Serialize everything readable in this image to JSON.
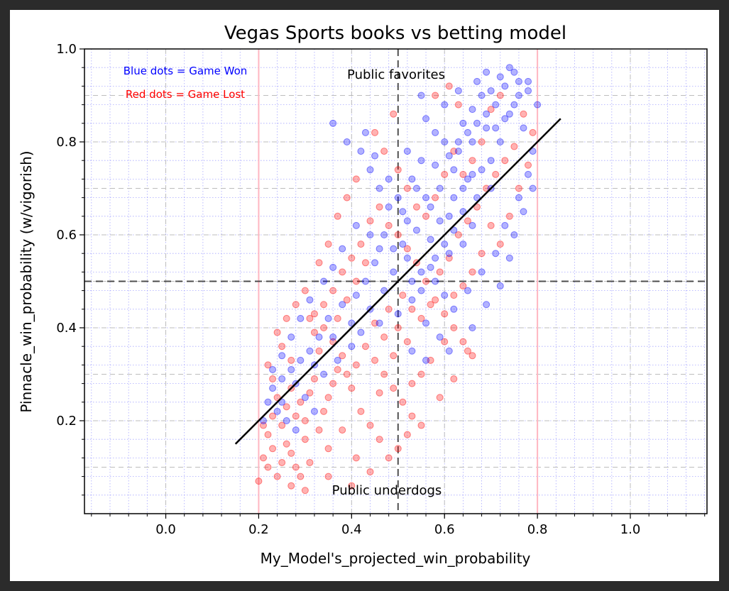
{
  "chart_data": {
    "type": "scatter",
    "title": "Vegas Sports books vs betting model",
    "xlabel": "My_Model's_projected_win_probability",
    "ylabel": "Pinnacle_win_probability (w/vigorish)",
    "xlim": [
      -0.175,
      1.165
    ],
    "ylim": [
      0.0,
      1.0
    ],
    "xticks": [
      0.0,
      0.2,
      0.4,
      0.6,
      0.8,
      1.0
    ],
    "xtick_labels": [
      "0.0",
      "0.2",
      "0.4",
      "0.6",
      "0.8",
      "1.0"
    ],
    "yticks": [
      0.2,
      0.4,
      0.6,
      0.8,
      1.0
    ],
    "ytick_labels": [
      "0.2",
      "0.4",
      "0.6",
      "0.8",
      "1.0"
    ],
    "grid": true,
    "minor_grid": true,
    "legend_notes": [
      {
        "text": "Blue dots = Game Won",
        "color": "#0000ff"
      },
      {
        "text": "Red dots = Game Lost",
        "color": "#ff0000"
      }
    ],
    "annotations": [
      {
        "text": "Public favorites",
        "x": 0.5,
        "y": 0.955
      },
      {
        "text": "Public underdogs",
        "x": 0.5,
        "y": 0.05
      }
    ],
    "reference_lines": {
      "horizontal_dashed": 0.5,
      "vertical_dashed": 0.5,
      "vertical_pink": [
        0.2,
        0.8
      ],
      "diagonal": {
        "from": [
          0.15,
          0.15
        ],
        "to": [
          0.85,
          0.85
        ]
      }
    },
    "series": [
      {
        "name": "Game Won",
        "color": "#0000ff",
        "points": [
          [
            0.74,
            0.96
          ],
          [
            0.75,
            0.95
          ],
          [
            0.72,
            0.94
          ],
          [
            0.73,
            0.92
          ],
          [
            0.7,
            0.91
          ],
          [
            0.76,
            0.9
          ],
          [
            0.78,
            0.93
          ],
          [
            0.71,
            0.88
          ],
          [
            0.74,
            0.86
          ],
          [
            0.68,
            0.9
          ],
          [
            0.66,
            0.87
          ],
          [
            0.64,
            0.84
          ],
          [
            0.69,
            0.83
          ],
          [
            0.72,
            0.8
          ],
          [
            0.63,
            0.78
          ],
          [
            0.6,
            0.8
          ],
          [
            0.58,
            0.82
          ],
          [
            0.56,
            0.85
          ],
          [
            0.62,
            0.74
          ],
          [
            0.65,
            0.72
          ],
          [
            0.59,
            0.7
          ],
          [
            0.55,
            0.76
          ],
          [
            0.53,
            0.72
          ],
          [
            0.57,
            0.66
          ],
          [
            0.61,
            0.64
          ],
          [
            0.66,
            0.62
          ],
          [
            0.52,
            0.63
          ],
          [
            0.5,
            0.68
          ],
          [
            0.48,
            0.66
          ],
          [
            0.46,
            0.7
          ],
          [
            0.44,
            0.74
          ],
          [
            0.42,
            0.78
          ],
          [
            0.39,
            0.8
          ],
          [
            0.36,
            0.84
          ],
          [
            0.47,
            0.6
          ],
          [
            0.49,
            0.57
          ],
          [
            0.52,
            0.55
          ],
          [
            0.55,
            0.52
          ],
          [
            0.58,
            0.5
          ],
          [
            0.6,
            0.47
          ],
          [
            0.45,
            0.54
          ],
          [
            0.43,
            0.5
          ],
          [
            0.41,
            0.47
          ],
          [
            0.38,
            0.45
          ],
          [
            0.35,
            0.42
          ],
          [
            0.33,
            0.38
          ],
          [
            0.31,
            0.35
          ],
          [
            0.29,
            0.33
          ],
          [
            0.27,
            0.31
          ],
          [
            0.25,
            0.29
          ],
          [
            0.23,
            0.27
          ],
          [
            0.22,
            0.24
          ],
          [
            0.24,
            0.22
          ],
          [
            0.26,
            0.2
          ],
          [
            0.3,
            0.25
          ],
          [
            0.34,
            0.3
          ],
          [
            0.37,
            0.33
          ],
          [
            0.4,
            0.36
          ],
          [
            0.42,
            0.39
          ],
          [
            0.46,
            0.41
          ],
          [
            0.5,
            0.43
          ],
          [
            0.53,
            0.46
          ],
          [
            0.56,
            0.41
          ],
          [
            0.59,
            0.38
          ],
          [
            0.62,
            0.44
          ],
          [
            0.65,
            0.48
          ],
          [
            0.68,
            0.52
          ],
          [
            0.71,
            0.56
          ],
          [
            0.73,
            0.62
          ],
          [
            0.76,
            0.68
          ],
          [
            0.78,
            0.73
          ],
          [
            0.79,
            0.78
          ],
          [
            0.77,
            0.83
          ],
          [
            0.8,
            0.88
          ],
          [
            0.7,
            0.76
          ],
          [
            0.67,
            0.68
          ],
          [
            0.64,
            0.58
          ],
          [
            0.61,
            0.56
          ],
          [
            0.57,
            0.59
          ],
          [
            0.54,
            0.61
          ],
          [
            0.51,
            0.65
          ],
          [
            0.48,
            0.72
          ],
          [
            0.45,
            0.77
          ],
          [
            0.43,
            0.82
          ],
          [
            0.55,
            0.9
          ],
          [
            0.6,
            0.88
          ],
          [
            0.63,
            0.91
          ],
          [
            0.67,
            0.93
          ],
          [
            0.69,
            0.95
          ],
          [
            0.66,
            0.8
          ],
          [
            0.58,
            0.75
          ],
          [
            0.52,
            0.78
          ],
          [
            0.47,
            0.48
          ],
          [
            0.44,
            0.44
          ],
          [
            0.4,
            0.41
          ],
          [
            0.36,
            0.38
          ],
          [
            0.32,
            0.32
          ],
          [
            0.28,
            0.28
          ],
          [
            0.25,
            0.24
          ],
          [
            0.21,
            0.2
          ],
          [
            0.53,
            0.35
          ],
          [
            0.56,
            0.33
          ],
          [
            0.61,
            0.35
          ],
          [
            0.66,
            0.4
          ],
          [
            0.69,
            0.45
          ],
          [
            0.72,
            0.49
          ],
          [
            0.74,
            0.55
          ],
          [
            0.75,
            0.6
          ],
          [
            0.77,
            0.65
          ],
          [
            0.79,
            0.7
          ],
          [
            0.62,
            0.68
          ],
          [
            0.64,
            0.65
          ],
          [
            0.59,
            0.63
          ],
          [
            0.56,
            0.68
          ],
          [
            0.54,
            0.7
          ],
          [
            0.51,
            0.58
          ],
          [
            0.49,
            0.52
          ],
          [
            0.46,
            0.57
          ],
          [
            0.44,
            0.6
          ],
          [
            0.41,
            0.62
          ],
          [
            0.38,
            0.57
          ],
          [
            0.36,
            0.53
          ],
          [
            0.34,
            0.5
          ],
          [
            0.31,
            0.46
          ],
          [
            0.29,
            0.42
          ],
          [
            0.27,
            0.38
          ],
          [
            0.25,
            0.34
          ],
          [
            0.23,
            0.31
          ],
          [
            0.28,
            0.18
          ],
          [
            0.32,
            0.22
          ],
          [
            0.76,
            0.93
          ],
          [
            0.78,
            0.91
          ],
          [
            0.75,
            0.88
          ],
          [
            0.73,
            0.85
          ],
          [
            0.71,
            0.83
          ],
          [
            0.69,
            0.86
          ],
          [
            0.67,
            0.84
          ],
          [
            0.65,
            0.82
          ],
          [
            0.63,
            0.8
          ],
          [
            0.61,
            0.77
          ],
          [
            0.7,
            0.7
          ],
          [
            0.68,
            0.74
          ],
          [
            0.66,
            0.73
          ],
          [
            0.64,
            0.7
          ],
          [
            0.62,
            0.61
          ],
          [
            0.6,
            0.58
          ],
          [
            0.58,
            0.55
          ],
          [
            0.57,
            0.53
          ],
          [
            0.55,
            0.48
          ],
          [
            0.53,
            0.5
          ]
        ]
      },
      {
        "name": "Game Lost",
        "color": "#ff0000",
        "points": [
          [
            0.21,
            0.12
          ],
          [
            0.22,
            0.1
          ],
          [
            0.23,
            0.14
          ],
          [
            0.24,
            0.08
          ],
          [
            0.25,
            0.11
          ],
          [
            0.22,
            0.17
          ],
          [
            0.21,
            0.19
          ],
          [
            0.26,
            0.15
          ],
          [
            0.27,
            0.13
          ],
          [
            0.28,
            0.1
          ],
          [
            0.23,
            0.21
          ],
          [
            0.24,
            0.25
          ],
          [
            0.25,
            0.19
          ],
          [
            0.26,
            0.23
          ],
          [
            0.27,
            0.27
          ],
          [
            0.28,
            0.21
          ],
          [
            0.29,
            0.24
          ],
          [
            0.3,
            0.2
          ],
          [
            0.31,
            0.26
          ],
          [
            0.32,
            0.29
          ],
          [
            0.3,
            0.16
          ],
          [
            0.33,
            0.18
          ],
          [
            0.34,
            0.22
          ],
          [
            0.35,
            0.25
          ],
          [
            0.36,
            0.28
          ],
          [
            0.37,
            0.31
          ],
          [
            0.38,
            0.34
          ],
          [
            0.39,
            0.3
          ],
          [
            0.4,
            0.27
          ],
          [
            0.41,
            0.32
          ],
          [
            0.33,
            0.35
          ],
          [
            0.32,
            0.39
          ],
          [
            0.31,
            0.42
          ],
          [
            0.34,
            0.45
          ],
          [
            0.36,
            0.48
          ],
          [
            0.38,
            0.52
          ],
          [
            0.4,
            0.55
          ],
          [
            0.42,
            0.58
          ],
          [
            0.44,
            0.63
          ],
          [
            0.46,
            0.66
          ],
          [
            0.48,
            0.62
          ],
          [
            0.5,
            0.6
          ],
          [
            0.52,
            0.57
          ],
          [
            0.54,
            0.54
          ],
          [
            0.56,
            0.5
          ],
          [
            0.58,
            0.46
          ],
          [
            0.6,
            0.43
          ],
          [
            0.62,
            0.4
          ],
          [
            0.64,
            0.37
          ],
          [
            0.66,
            0.34
          ],
          [
            0.43,
            0.36
          ],
          [
            0.45,
            0.33
          ],
          [
            0.47,
            0.3
          ],
          [
            0.49,
            0.27
          ],
          [
            0.51,
            0.24
          ],
          [
            0.53,
            0.21
          ],
          [
            0.55,
            0.19
          ],
          [
            0.42,
            0.22
          ],
          [
            0.44,
            0.19
          ],
          [
            0.46,
            0.16
          ],
          [
            0.48,
            0.12
          ],
          [
            0.5,
            0.14
          ],
          [
            0.52,
            0.17
          ],
          [
            0.29,
            0.08
          ],
          [
            0.31,
            0.11
          ],
          [
            0.35,
            0.14
          ],
          [
            0.38,
            0.18
          ],
          [
            0.41,
            0.12
          ],
          [
            0.44,
            0.09
          ],
          [
            0.27,
            0.06
          ],
          [
            0.48,
            0.44
          ],
          [
            0.5,
            0.4
          ],
          [
            0.52,
            0.37
          ],
          [
            0.55,
            0.42
          ],
          [
            0.57,
            0.45
          ],
          [
            0.59,
            0.52
          ],
          [
            0.61,
            0.55
          ],
          [
            0.63,
            0.6
          ],
          [
            0.65,
            0.63
          ],
          [
            0.67,
            0.66
          ],
          [
            0.69,
            0.7
          ],
          [
            0.71,
            0.73
          ],
          [
            0.73,
            0.76
          ],
          [
            0.75,
            0.79
          ],
          [
            0.62,
            0.78
          ],
          [
            0.6,
            0.73
          ],
          [
            0.58,
            0.68
          ],
          [
            0.56,
            0.64
          ],
          [
            0.54,
            0.66
          ],
          [
            0.52,
            0.7
          ],
          [
            0.5,
            0.74
          ],
          [
            0.47,
            0.78
          ],
          [
            0.45,
            0.82
          ],
          [
            0.49,
            0.86
          ],
          [
            0.63,
            0.88
          ],
          [
            0.61,
            0.92
          ],
          [
            0.58,
            0.9
          ],
          [
            0.7,
            0.62
          ],
          [
            0.72,
            0.58
          ],
          [
            0.68,
            0.56
          ],
          [
            0.66,
            0.52
          ],
          [
            0.64,
            0.49
          ],
          [
            0.62,
            0.47
          ],
          [
            0.6,
            0.37
          ],
          [
            0.57,
            0.33
          ],
          [
            0.55,
            0.3
          ],
          [
            0.53,
            0.28
          ],
          [
            0.59,
            0.25
          ],
          [
            0.62,
            0.29
          ],
          [
            0.65,
            0.35
          ],
          [
            0.37,
            0.42
          ],
          [
            0.39,
            0.46
          ],
          [
            0.41,
            0.5
          ],
          [
            0.43,
            0.54
          ],
          [
            0.35,
            0.58
          ],
          [
            0.33,
            0.54
          ],
          [
            0.37,
            0.64
          ],
          [
            0.39,
            0.68
          ],
          [
            0.41,
            0.72
          ],
          [
            0.27,
            0.33
          ],
          [
            0.25,
            0.36
          ],
          [
            0.23,
            0.29
          ],
          [
            0.22,
            0.32
          ],
          [
            0.24,
            0.39
          ],
          [
            0.26,
            0.42
          ],
          [
            0.28,
            0.45
          ],
          [
            0.3,
            0.48
          ],
          [
            0.32,
            0.43
          ],
          [
            0.34,
            0.4
          ],
          [
            0.36,
            0.37
          ],
          [
            0.74,
            0.64
          ],
          [
            0.76,
            0.7
          ],
          [
            0.78,
            0.75
          ],
          [
            0.79,
            0.82
          ],
          [
            0.77,
            0.86
          ],
          [
            0.72,
            0.9
          ],
          [
            0.7,
            0.87
          ],
          [
            0.68,
            0.8
          ],
          [
            0.66,
            0.76
          ],
          [
            0.64,
            0.73
          ],
          [
            0.4,
            0.06
          ],
          [
            0.35,
            0.08
          ],
          [
            0.3,
            0.05
          ],
          [
            0.2,
            0.07
          ],
          [
            0.46,
            0.26
          ],
          [
            0.49,
            0.34
          ],
          [
            0.51,
            0.47
          ],
          [
            0.53,
            0.44
          ],
          [
            0.47,
            0.38
          ],
          [
            0.45,
            0.41
          ]
        ]
      }
    ]
  }
}
